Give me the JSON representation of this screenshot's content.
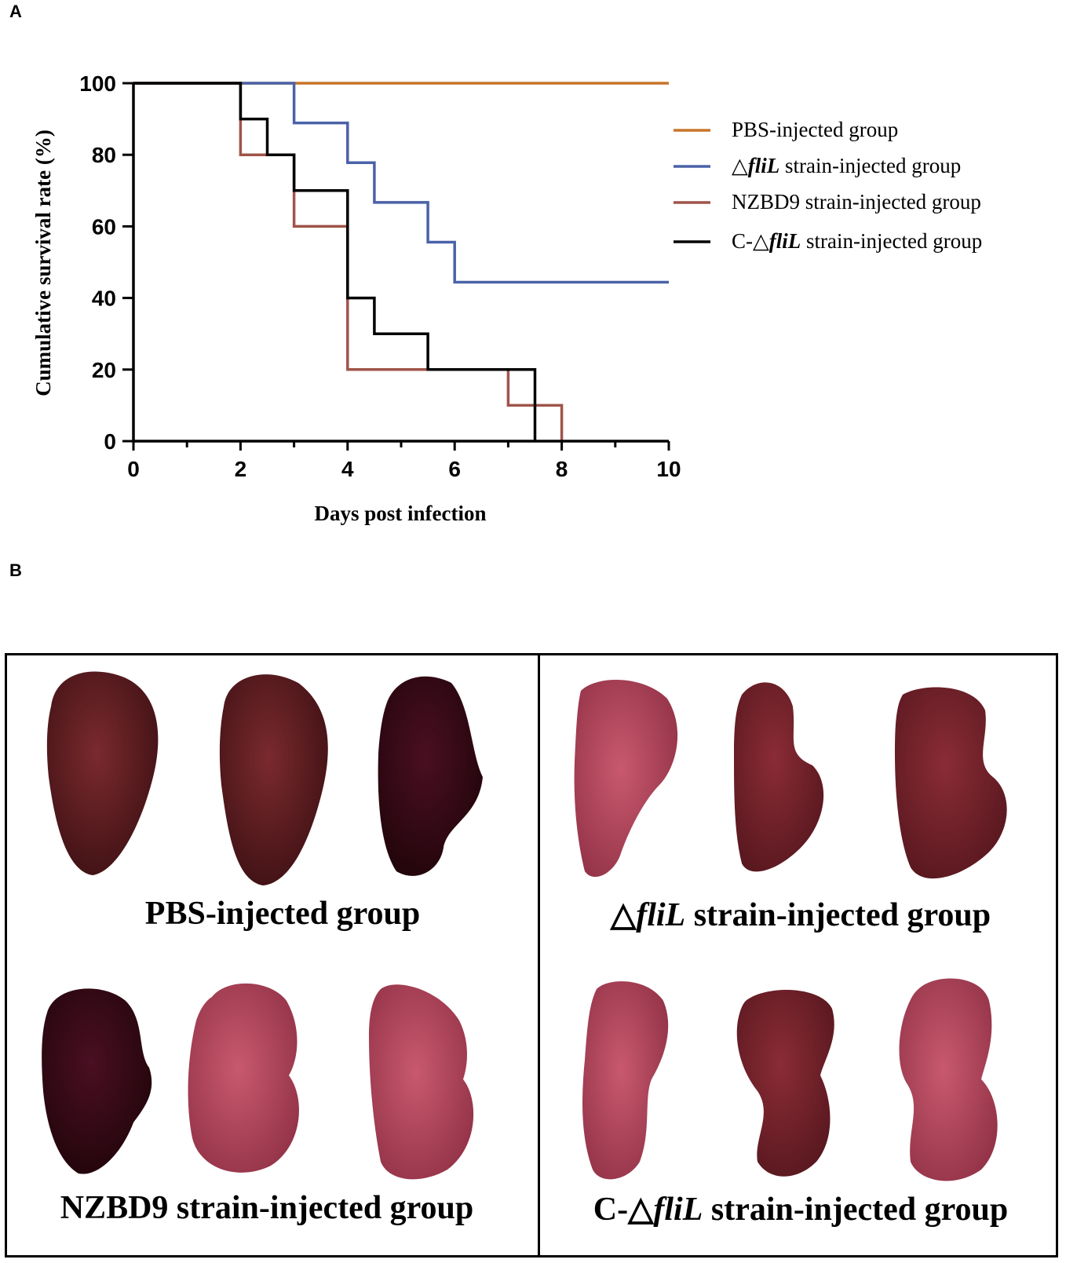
{
  "panel_labels": {
    "a": "A",
    "b": "B"
  },
  "chart_data": {
    "type": "line",
    "step": true,
    "title": "",
    "xlabel": "Days post infection",
    "ylabel": "Cumulative survival rate (%)",
    "xlim": [
      0,
      10
    ],
    "ylim": [
      0,
      100
    ],
    "x_ticks": [
      "0",
      "2",
      "4",
      "6",
      "8",
      "10"
    ],
    "y_ticks": [
      "0",
      "20",
      "40",
      "60",
      "80",
      "100"
    ],
    "grid": false,
    "legend_position": "right",
    "series": [
      {
        "name": "PBS-injected group",
        "color": "#c9752a",
        "x": [
          0,
          10
        ],
        "y": [
          100,
          100
        ]
      },
      {
        "name": "△fliL strain-injected group",
        "name_prefix": "△",
        "name_italic": "fliL",
        "name_suffix": " strain-injected group",
        "color": "#4a62a8",
        "x": [
          0,
          3,
          4,
          4.5,
          5.5,
          6,
          10
        ],
        "y": [
          100,
          88.9,
          77.8,
          66.7,
          55.6,
          44.4,
          44.4
        ]
      },
      {
        "name": "NZBD9 strain-injected group",
        "color": "#a0544a",
        "x": [
          0,
          2,
          3,
          4,
          7,
          8
        ],
        "y": [
          100,
          80,
          60,
          20,
          10,
          0
        ]
      },
      {
        "name": "C-△fliL strain-injected group",
        "name_prefix": "C-△",
        "name_italic": "fliL",
        "name_suffix": " strain-injected group",
        "color": "#000000",
        "x": [
          0,
          2,
          2.5,
          3,
          4,
          4.5,
          5.5,
          7.5
        ],
        "y": [
          100,
          90,
          80,
          70,
          40,
          30,
          20,
          0
        ]
      }
    ]
  },
  "photo_panel": {
    "groups": [
      {
        "prefix": "PBS-injected group",
        "italic": "",
        "suffix": ""
      },
      {
        "prefix": "△",
        "italic": "fliL",
        "suffix": " strain-injected group"
      },
      {
        "prefix": "NZBD9 strain-injected group",
        "italic": "",
        "suffix": ""
      },
      {
        "prefix": "C-△",
        "italic": "fliL",
        "suffix": " strain-injected group"
      }
    ],
    "spleen_colors": {
      "dark": "#4a1518",
      "dark_red": "#6b1f24",
      "mottled": "#b2465a",
      "red": "#8e2a35"
    }
  }
}
